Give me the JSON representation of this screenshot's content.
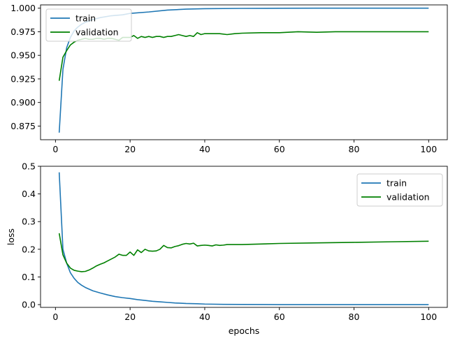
{
  "chart_data": [
    {
      "type": "line",
      "title": "",
      "xlabel": "",
      "ylabel": "",
      "xlim": [
        -4,
        105
      ],
      "ylim": [
        0.8605,
        1.0035
      ],
      "xticks": [
        0,
        20,
        40,
        60,
        80,
        100
      ],
      "yticks": [
        0.875,
        0.9,
        0.925,
        0.95,
        0.975,
        1.0
      ],
      "yticklabels": [
        "0.875",
        "0.900",
        "0.925",
        "0.950",
        "0.975",
        "1.000"
      ],
      "grid": false,
      "legend": "upper-left",
      "series": [
        {
          "name": "train",
          "color": "#1f77b4",
          "x": [
            1,
            2,
            3,
            4,
            5,
            6,
            7,
            8,
            10,
            12,
            15,
            18,
            20,
            25,
            30,
            35,
            40,
            50,
            60,
            70,
            80,
            90,
            100
          ],
          "y": [
            0.868,
            0.935,
            0.958,
            0.969,
            0.976,
            0.98,
            0.983,
            0.985,
            0.988,
            0.99,
            0.992,
            0.993,
            0.9945,
            0.996,
            0.998,
            0.999,
            0.9995,
            0.9998,
            0.9999,
            1.0,
            1.0,
            1.0,
            1.0
          ]
        },
        {
          "name": "validation",
          "color": "#008000",
          "x": [
            1,
            2,
            3,
            4,
            5,
            6,
            7,
            8,
            9,
            10,
            11,
            12,
            13,
            14,
            15,
            16,
            17,
            18,
            19,
            20,
            21,
            22,
            23,
            24,
            25,
            26,
            27,
            28,
            29,
            30,
            31,
            32,
            33,
            34,
            35,
            36,
            37,
            38,
            39,
            40,
            42,
            44,
            46,
            48,
            50,
            55,
            60,
            65,
            70,
            75,
            80,
            85,
            90,
            95,
            100
          ],
          "y": [
            0.923,
            0.948,
            0.955,
            0.961,
            0.964,
            0.966,
            0.967,
            0.968,
            0.967,
            0.967,
            0.968,
            0.968,
            0.967,
            0.968,
            0.968,
            0.967,
            0.966,
            0.969,
            0.969,
            0.969,
            0.971,
            0.968,
            0.97,
            0.969,
            0.97,
            0.969,
            0.97,
            0.97,
            0.969,
            0.97,
            0.97,
            0.971,
            0.972,
            0.971,
            0.97,
            0.971,
            0.97,
            0.974,
            0.972,
            0.973,
            0.973,
            0.973,
            0.972,
            0.973,
            0.9735,
            0.974,
            0.974,
            0.975,
            0.9745,
            0.975,
            0.975,
            0.975,
            0.975,
            0.975,
            0.975
          ]
        }
      ]
    },
    {
      "type": "line",
      "title": "",
      "xlabel": "epochs",
      "ylabel": "loss",
      "xlim": [
        -4,
        105
      ],
      "ylim": [
        -0.01,
        0.5
      ],
      "xticks": [
        0,
        20,
        40,
        60,
        80,
        100
      ],
      "yticks": [
        0.0,
        0.1,
        0.2,
        0.3,
        0.4,
        0.5
      ],
      "yticklabels": [
        "0.0",
        "0.1",
        "0.2",
        "0.3",
        "0.4",
        "0.5"
      ],
      "grid": false,
      "legend": "upper-right",
      "series": [
        {
          "name": "train",
          "color": "#1f77b4",
          "x": [
            1,
            2,
            3,
            4,
            5,
            6,
            7,
            8,
            9,
            10,
            12,
            14,
            16,
            18,
            20,
            22,
            24,
            26,
            28,
            30,
            32,
            35,
            38,
            40,
            45,
            50,
            60,
            70,
            80,
            90,
            100
          ],
          "y": [
            0.478,
            0.2,
            0.15,
            0.115,
            0.095,
            0.08,
            0.07,
            0.062,
            0.056,
            0.05,
            0.042,
            0.035,
            0.029,
            0.025,
            0.022,
            0.018,
            0.015,
            0.012,
            0.01,
            0.008,
            0.006,
            0.004,
            0.003,
            0.002,
            0.001,
            0.0005,
            0.0,
            0.0,
            0.0,
            0.0,
            0.0
          ]
        },
        {
          "name": "validation",
          "color": "#008000",
          "x": [
            1,
            2,
            3,
            4,
            5,
            6,
            7,
            8,
            9,
            10,
            11,
            12,
            13,
            14,
            15,
            16,
            17,
            18,
            19,
            20,
            21,
            22,
            23,
            24,
            25,
            26,
            27,
            28,
            29,
            30,
            31,
            32,
            33,
            34,
            35,
            36,
            37,
            38,
            39,
            40,
            41,
            42,
            43,
            44,
            45,
            46,
            48,
            50,
            55,
            60,
            70,
            80,
            90,
            100
          ],
          "y": [
            0.258,
            0.18,
            0.15,
            0.132,
            0.124,
            0.121,
            0.119,
            0.12,
            0.125,
            0.132,
            0.14,
            0.146,
            0.151,
            0.158,
            0.165,
            0.172,
            0.182,
            0.178,
            0.178,
            0.19,
            0.178,
            0.198,
            0.188,
            0.2,
            0.194,
            0.193,
            0.194,
            0.2,
            0.214,
            0.206,
            0.205,
            0.21,
            0.213,
            0.218,
            0.221,
            0.219,
            0.222,
            0.212,
            0.214,
            0.215,
            0.214,
            0.212,
            0.216,
            0.214,
            0.215,
            0.217,
            0.217,
            0.217,
            0.219,
            0.221,
            0.223,
            0.225,
            0.227,
            0.229
          ]
        }
      ]
    }
  ]
}
